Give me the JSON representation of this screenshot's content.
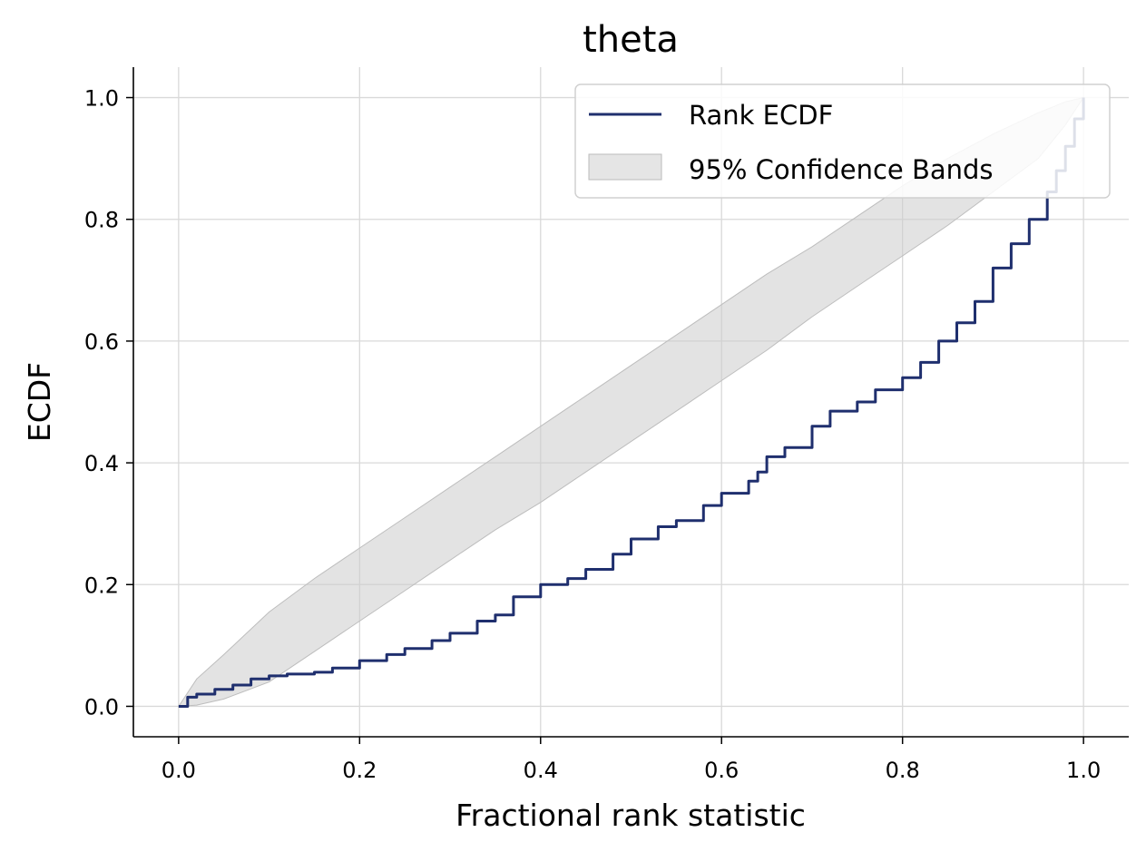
{
  "chart_data": {
    "type": "line",
    "title": "theta",
    "xlabel": "Fractional rank statistic",
    "ylabel": "ECDF",
    "xlim": [
      -0.05,
      1.05
    ],
    "ylim": [
      -0.05,
      1.05
    ],
    "xticks": [
      0.0,
      0.2,
      0.4,
      0.6,
      0.8,
      1.0
    ],
    "yticks": [
      0.0,
      0.2,
      0.4,
      0.6,
      0.8,
      1.0
    ],
    "xtick_labels": [
      "0.0",
      "0.2",
      "0.4",
      "0.6",
      "0.8",
      "1.0"
    ],
    "ytick_labels": [
      "0.0",
      "0.2",
      "0.4",
      "0.6",
      "0.8",
      "1.0"
    ],
    "grid": true,
    "legend_position": "top-right",
    "series": [
      {
        "name": "Rank ECDF",
        "color": "#1f2f6e",
        "x": [
          0.0,
          0.01,
          0.02,
          0.04,
          0.06,
          0.08,
          0.1,
          0.12,
          0.15,
          0.17,
          0.2,
          0.23,
          0.25,
          0.28,
          0.3,
          0.33,
          0.35,
          0.37,
          0.4,
          0.43,
          0.45,
          0.48,
          0.5,
          0.53,
          0.55,
          0.58,
          0.6,
          0.63,
          0.64,
          0.65,
          0.67,
          0.7,
          0.72,
          0.75,
          0.77,
          0.8,
          0.82,
          0.84,
          0.86,
          0.88,
          0.9,
          0.92,
          0.94,
          0.96,
          0.97,
          0.98,
          0.99,
          1.0
        ],
        "y": [
          0.0,
          0.015,
          0.02,
          0.028,
          0.035,
          0.045,
          0.05,
          0.053,
          0.056,
          0.063,
          0.075,
          0.085,
          0.095,
          0.108,
          0.12,
          0.14,
          0.15,
          0.18,
          0.2,
          0.21,
          0.225,
          0.25,
          0.275,
          0.295,
          0.305,
          0.33,
          0.35,
          0.37,
          0.385,
          0.41,
          0.425,
          0.46,
          0.485,
          0.5,
          0.52,
          0.54,
          0.565,
          0.6,
          0.63,
          0.665,
          0.72,
          0.76,
          0.8,
          0.845,
          0.88,
          0.92,
          0.965,
          1.0
        ]
      }
    ],
    "band": {
      "name": "95% Confidence Bands",
      "color": "#cccccc",
      "x": [
        0.0,
        0.02,
        0.05,
        0.1,
        0.15,
        0.2,
        0.25,
        0.3,
        0.35,
        0.4,
        0.45,
        0.5,
        0.55,
        0.6,
        0.65,
        0.7,
        0.75,
        0.8,
        0.85,
        0.9,
        0.95,
        0.98,
        1.0
      ],
      "lower": [
        0.0,
        0.002,
        0.012,
        0.04,
        0.09,
        0.14,
        0.19,
        0.24,
        0.29,
        0.335,
        0.385,
        0.435,
        0.485,
        0.535,
        0.585,
        0.64,
        0.69,
        0.74,
        0.79,
        0.845,
        0.9,
        0.955,
        1.0
      ],
      "upper": [
        0.0,
        0.045,
        0.085,
        0.155,
        0.21,
        0.26,
        0.31,
        0.36,
        0.41,
        0.46,
        0.51,
        0.56,
        0.61,
        0.66,
        0.71,
        0.755,
        0.805,
        0.855,
        0.9,
        0.94,
        0.975,
        0.993,
        1.0
      ]
    }
  }
}
